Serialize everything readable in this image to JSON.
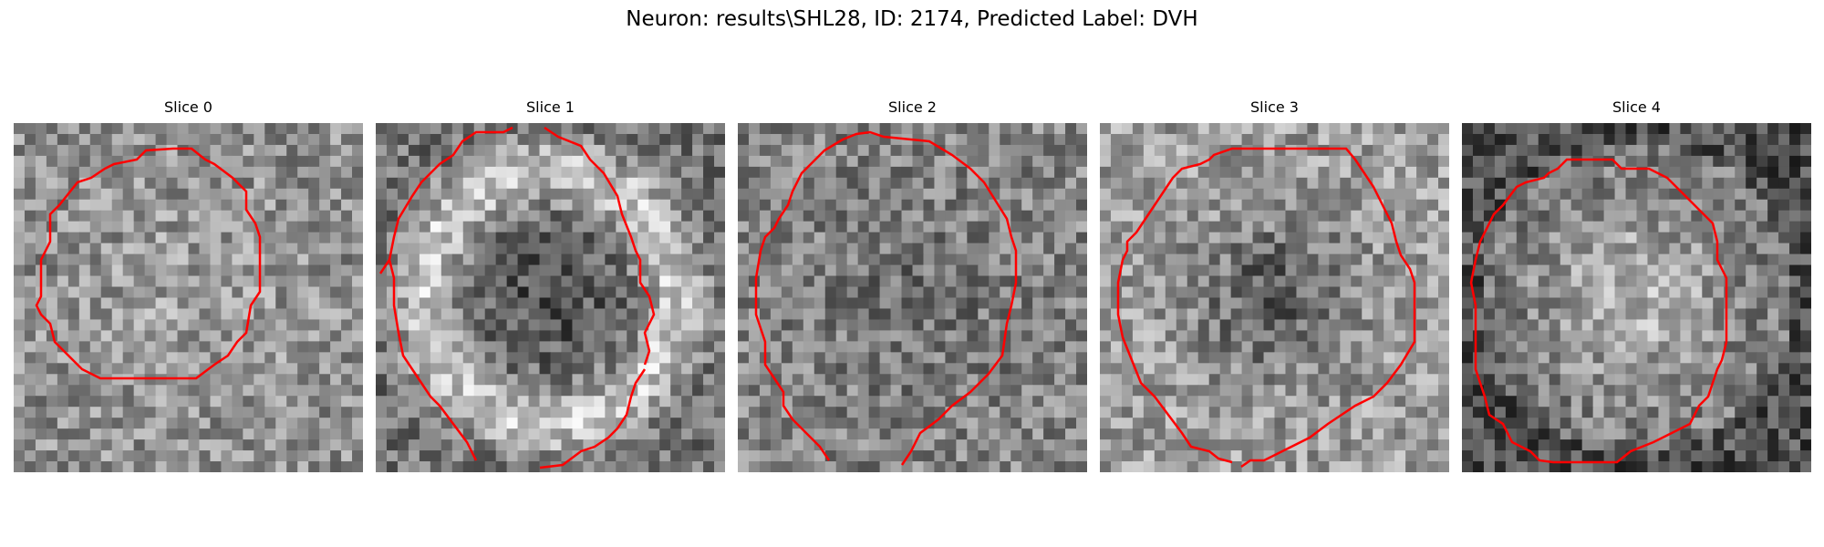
{
  "figure": {
    "title": "Neuron: results\\SHL28, ID: 2174, Predicted Label: DVH",
    "contour_color": "#ff0000"
  },
  "panels": [
    {
      "title": "Slice 0",
      "pattern": "disc",
      "seed": 11
    },
    {
      "title": "Slice 1",
      "pattern": "ring",
      "seed": 23
    },
    {
      "title": "Slice 2",
      "pattern": "dim",
      "seed": 37
    },
    {
      "title": "Slice 3",
      "pattern": "dark-center",
      "seed": 41
    },
    {
      "title": "Slice 4",
      "pattern": "bright-center",
      "seed": 59
    }
  ]
}
